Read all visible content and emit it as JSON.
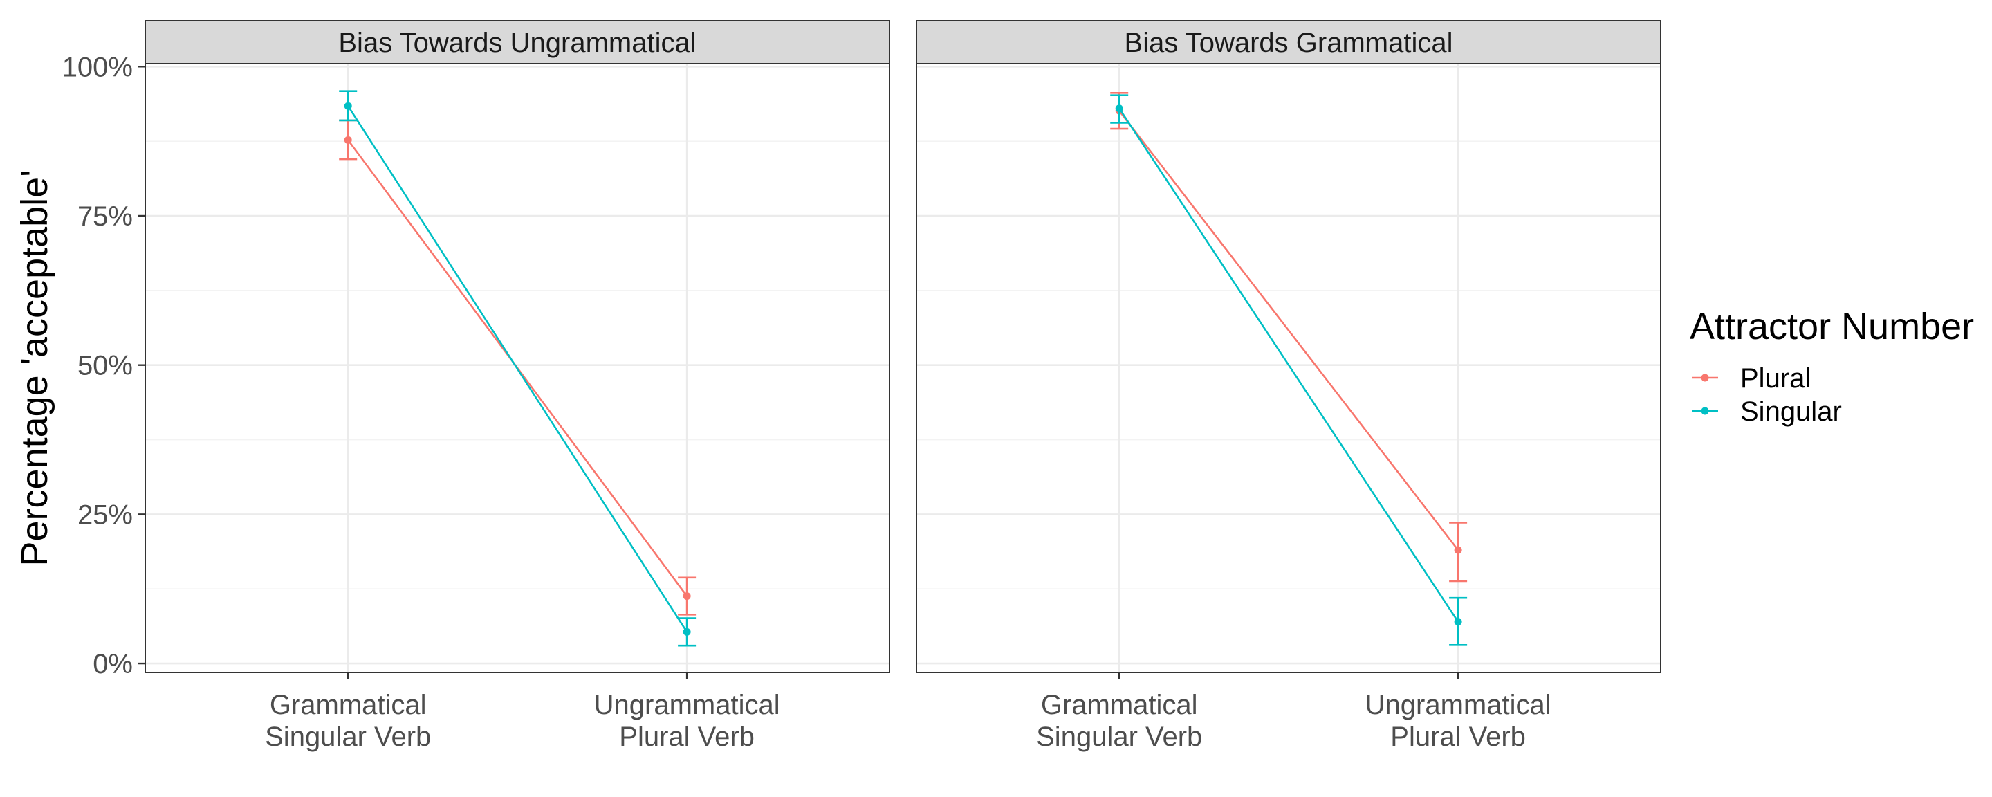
{
  "chart_data": {
    "type": "line",
    "facets": [
      {
        "title": "Bias Towards Ungrammatical",
        "series": [
          {
            "name": "Plural",
            "values": [
              {
                "x": "Grammatical\nSingular Verb",
                "y": 87.7,
                "lower": 84.5,
                "upper": 91.0
              },
              {
                "x": "Ungrammatical\nPlural Verb",
                "y": 11.3,
                "lower": 8.2,
                "upper": 14.4
              }
            ]
          },
          {
            "name": "Singular",
            "values": [
              {
                "x": "Grammatical\nSingular Verb",
                "y": 93.4,
                "lower": 91.0,
                "upper": 95.9
              },
              {
                "x": "Ungrammatical\nPlural Verb",
                "y": 5.3,
                "lower": 3.0,
                "upper": 7.6
              }
            ]
          }
        ]
      },
      {
        "title": "Bias Towards Grammatical",
        "series": [
          {
            "name": "Plural",
            "values": [
              {
                "x": "Grammatical\nSingular Verb",
                "y": 92.6,
                "lower": 89.6,
                "upper": 95.6
              },
              {
                "x": "Ungrammatical\nPlural Verb",
                "y": 19.0,
                "lower": 13.8,
                "upper": 23.6
              }
            ]
          },
          {
            "name": "Singular",
            "values": [
              {
                "x": "Grammatical\nSingular Verb",
                "y": 93.0,
                "lower": 90.6,
                "upper": 95.2
              },
              {
                "x": "Ungrammatical\nPlural Verb",
                "y": 7.0,
                "lower": 3.1,
                "upper": 11.0
              }
            ]
          }
        ]
      }
    ],
    "categories": [
      "Grammatical\nSingular Verb",
      "Ungrammatical\nPlural Verb"
    ],
    "ylabel": "Percentage 'acceptable'",
    "yticks": [
      "0%",
      "25%",
      "50%",
      "75%",
      "100%"
    ],
    "ytick_values": [
      0,
      25,
      50,
      75,
      100
    ],
    "ylim": [
      -1.5,
      100.5
    ],
    "legend": {
      "title": "Attractor Number",
      "position": "right",
      "entries": [
        "Plural",
        "Singular"
      ]
    },
    "colors": {
      "Plural": "#F8766D",
      "Singular": "#00BFC4"
    },
    "grid": true
  }
}
